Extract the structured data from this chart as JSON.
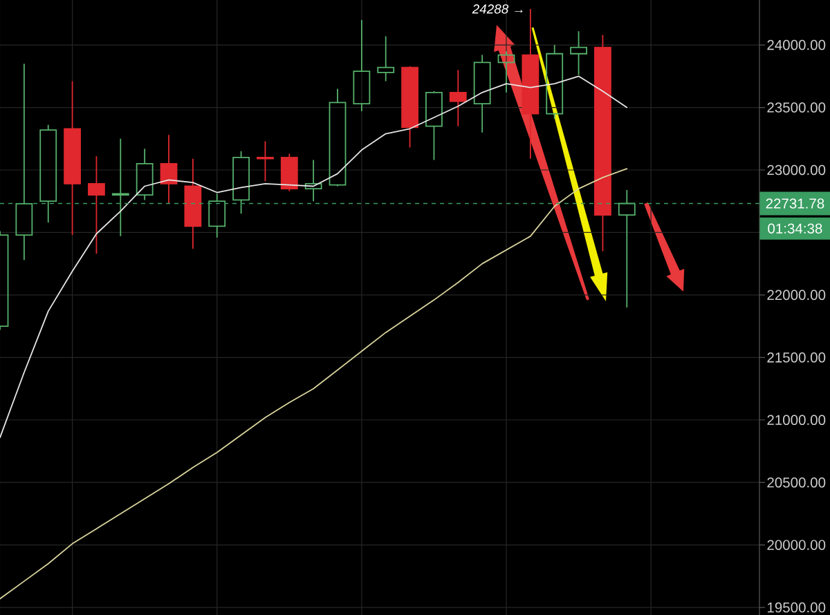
{
  "chart_data": {
    "type": "candlestick",
    "categories": [
      null,
      null,
      null,
      null,
      null,
      null,
      null,
      null,
      null,
      null,
      null,
      null,
      null,
      null,
      null,
      null,
      null,
      null,
      null,
      null,
      null,
      null,
      null,
      null,
      null,
      null,
      null
    ],
    "ohlc": [
      [
        21750,
        22510,
        21720,
        22480
      ],
      [
        22480,
        23850,
        22280,
        22730
      ],
      [
        22750,
        23360,
        22580,
        23320
      ],
      [
        23330,
        23710,
        22480,
        22890
      ],
      [
        22890,
        23110,
        22330,
        22800
      ],
      [
        22800,
        23250,
        22470,
        22810
      ],
      [
        22800,
        23170,
        22760,
        23050
      ],
      [
        23050,
        23280,
        22730,
        22890
      ],
      [
        22870,
        23090,
        22370,
        22550
      ],
      [
        22550,
        22810,
        22460,
        22750
      ],
      [
        22760,
        23150,
        22650,
        23100
      ],
      [
        23100,
        23230,
        22910,
        23090
      ],
      [
        23100,
        23130,
        22830,
        22850
      ],
      [
        22850,
        23080,
        22750,
        22890
      ],
      [
        22880,
        23650,
        22870,
        23540
      ],
      [
        23530,
        24200,
        23470,
        23790
      ],
      [
        23780,
        24070,
        23710,
        23820
      ],
      [
        23820,
        23830,
        23180,
        23340
      ],
      [
        23350,
        23630,
        23080,
        23620
      ],
      [
        23620,
        23800,
        23350,
        23550
      ],
      [
        23530,
        23920,
        23300,
        23860
      ],
      [
        23860,
        23950,
        23620,
        23920
      ],
      [
        23920,
        24288,
        23090,
        23450
      ],
      [
        23450,
        24000,
        23410,
        23930
      ],
      [
        23930,
        24110,
        23760,
        23980
      ],
      [
        23980,
        24080,
        22350,
        22640
      ],
      [
        22640,
        22840,
        21900,
        22731.78
      ]
    ],
    "colors": [
      "#56b26c",
      "#56b26c",
      "#56b26c",
      "#e0282e",
      "#e0282e",
      "#56b26c",
      "#56b26c",
      "#e0282e",
      "#e0282e",
      "#56b26c",
      "#56b26c",
      "#e0282e",
      "#e0282e",
      "#56b26c",
      "#56b26c",
      "#56b26c",
      "#56b26c",
      "#e0282e",
      "#56b26c",
      "#e0282e",
      "#56b26c",
      "#56b26c",
      "#e0282e",
      "#56b26c",
      "#56b26c",
      "#e0282e",
      "#56b26c"
    ],
    "series": [
      {
        "type": "line",
        "color": "#e6e6e6",
        "values": [
          20860,
          21380,
          21870,
          22190,
          22490,
          22670,
          22870,
          22920,
          22900,
          22820,
          22860,
          22890,
          22880,
          22870,
          22970,
          23160,
          23290,
          23330,
          23420,
          23510,
          23620,
          23690,
          23660,
          23690,
          23750,
          23630,
          23500
        ]
      },
      {
        "type": "line",
        "color": "#d9d49c",
        "values": [
          19570,
          19710,
          19850,
          20010,
          20130,
          20250,
          20370,
          20490,
          20620,
          20740,
          20880,
          21020,
          21140,
          21250,
          21400,
          21550,
          21700,
          21830,
          21960,
          22100,
          22250,
          22360,
          22470,
          22710,
          22850,
          22940,
          23010
        ]
      }
    ],
    "ylim": [
      19440,
      24360
    ],
    "yticks": [
      {
        "value": 19500,
        "label": "19500.00"
      },
      {
        "value": 20000,
        "label": "20000.00"
      },
      {
        "value": 20500,
        "label": "20500.00"
      },
      {
        "value": 21000,
        "label": "21000.00"
      },
      {
        "value": 21500,
        "label": "21500.00"
      },
      {
        "value": 22000,
        "label": "22000.00"
      },
      {
        "value": 22500,
        "label": null
      },
      {
        "value": 23000,
        "label": "23000.00"
      },
      {
        "value": 23500,
        "label": "23500.00"
      },
      {
        "value": 24000,
        "label": "24000.00"
      }
    ],
    "grid": true,
    "tick_labels": "y",
    "ref_lines": [
      {
        "axis": "y",
        "value": 22731.78,
        "label": "22731.78",
        "color": "#3a9d62",
        "line_style": "dashed"
      }
    ],
    "annotations": [
      "24288 →",
      "01:34:38"
    ]
  }
}
